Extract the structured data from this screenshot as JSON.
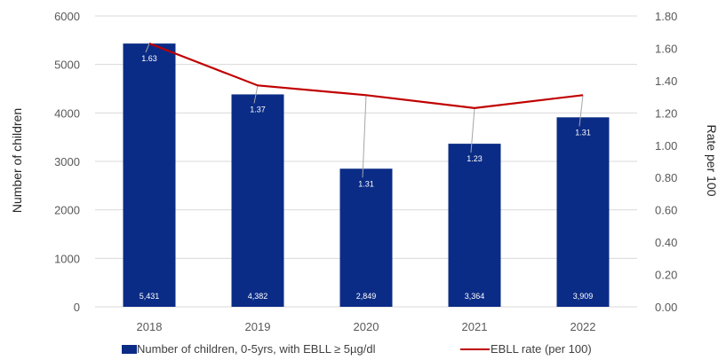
{
  "colors": {
    "bar": "#0B2C86",
    "line": "#C00000",
    "grid": "#D9D9D9",
    "leader": "#A6A6A6"
  },
  "chart_data": {
    "type": "bar",
    "categories": [
      "2018",
      "2019",
      "2020",
      "2021",
      "2022"
    ],
    "series": [
      {
        "name": "Number of children, 0-5yrs, with EBLL ≥ 5µg/dl",
        "type": "bar",
        "axis": "left",
        "values": [
          5431,
          4382,
          2849,
          3364,
          3909
        ],
        "labels": [
          "5,431",
          "4,382",
          "2,849",
          "3,364",
          "3,909"
        ]
      },
      {
        "name": "EBLL rate (per 100)",
        "type": "line",
        "axis": "right",
        "values": [
          1.63,
          1.37,
          1.31,
          1.23,
          1.31
        ],
        "labels": [
          "1.63",
          "1.37",
          "1.31",
          "1.23",
          "1.31"
        ]
      }
    ],
    "ylabel": "Number of children",
    "y2label": "Rate per 100",
    "ylim": [
      0,
      6000
    ],
    "y2lim": [
      0,
      1.8
    ],
    "yticks": [
      "0",
      "1000",
      "2000",
      "3000",
      "4000",
      "5000",
      "6000"
    ],
    "y2ticks": [
      "0.00",
      "0.20",
      "0.40",
      "0.60",
      "0.80",
      "1.00",
      "1.20",
      "1.40",
      "1.60",
      "1.80"
    ],
    "grid": true,
    "legend_position": "bottom"
  }
}
